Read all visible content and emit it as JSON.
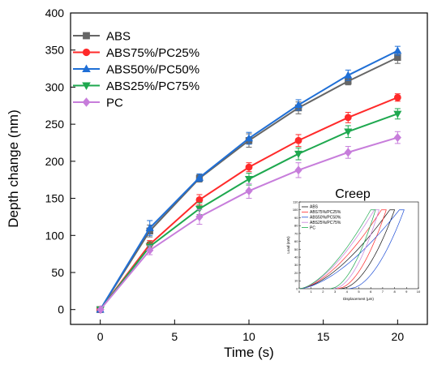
{
  "chart_data": [
    {
      "type": "line",
      "title": "",
      "xlabel": "Time (s)",
      "ylabel": "Depth change (nm)",
      "xlim": [
        -2,
        22
      ],
      "ylim": [
        -20,
        400
      ],
      "xticks": [
        0,
        5,
        10,
        15,
        20
      ],
      "yticks": [
        0,
        50,
        100,
        150,
        200,
        250,
        300,
        350,
        400
      ],
      "legend_position": "top-left",
      "grid": false,
      "x": [
        0,
        3.33,
        6.67,
        10,
        13.33,
        16.67,
        20
      ],
      "series": [
        {
          "name": "ABS",
          "color": "#666666",
          "marker": "square",
          "values": [
            0,
            106,
            177,
            228,
            272,
            308,
            340
          ],
          "errors": [
            0,
            8,
            5,
            9,
            8,
            5,
            8
          ]
        },
        {
          "name": "ABS75%/PC25%",
          "color": "#ff2a2a",
          "marker": "circle",
          "values": [
            0,
            88,
            148,
            192,
            228,
            259,
            286
          ],
          "errors": [
            0,
            5,
            7,
            6,
            8,
            7,
            5
          ]
        },
        {
          "name": "ABS50%/PC50%",
          "color": "#1f6fd6",
          "marker": "triangle-up",
          "values": [
            0,
            110,
            178,
            231,
            276,
            316,
            349
          ],
          "errors": [
            0,
            10,
            5,
            8,
            7,
            7,
            6
          ]
        },
        {
          "name": "ABS25%/PC75%",
          "color": "#1ea84f",
          "marker": "triangle-down",
          "values": [
            0,
            85,
            136,
            176,
            210,
            240,
            264
          ],
          "errors": [
            0,
            6,
            8,
            8,
            8,
            8,
            7
          ]
        },
        {
          "name": "PC",
          "color": "#c77ddb",
          "marker": "diamond",
          "values": [
            0,
            80,
            125,
            160,
            188,
            212,
            232
          ],
          "errors": [
            0,
            6,
            10,
            10,
            10,
            8,
            8
          ]
        }
      ]
    },
    {
      "type": "line",
      "title": "Creep",
      "xlabel": "Displacement (μm)",
      "ylabel": "Load (mN)",
      "xlim": [
        0,
        10
      ],
      "ylim": [
        0,
        110
      ],
      "xticks": [
        0,
        1,
        2,
        3,
        4,
        5,
        6,
        7,
        8,
        9,
        10
      ],
      "yticks": [
        0,
        10,
        20,
        30,
        40,
        50,
        60,
        70,
        80,
        90,
        100,
        110
      ],
      "legend_position": "top-left",
      "series": [
        {
          "name": "ABS",
          "color": "#111111",
          "loading_end": 8.0,
          "unloading_end": 3.5
        },
        {
          "name": "ABS75%/PC25%",
          "color": "#ff2a2a",
          "loading_end": 7.3,
          "unloading_end": 3.2
        },
        {
          "name": "ABS50%/PC50%",
          "color": "#1f4fd6",
          "loading_end": 8.8,
          "unloading_end": 4.2
        },
        {
          "name": "ABS25%/PC75%",
          "color": "#c77ddb",
          "loading_end": 6.7,
          "unloading_end": 2.9
        },
        {
          "name": "PC",
          "color": "#1ea84f",
          "loading_end": 6.4,
          "unloading_end": 2.6
        }
      ]
    }
  ]
}
